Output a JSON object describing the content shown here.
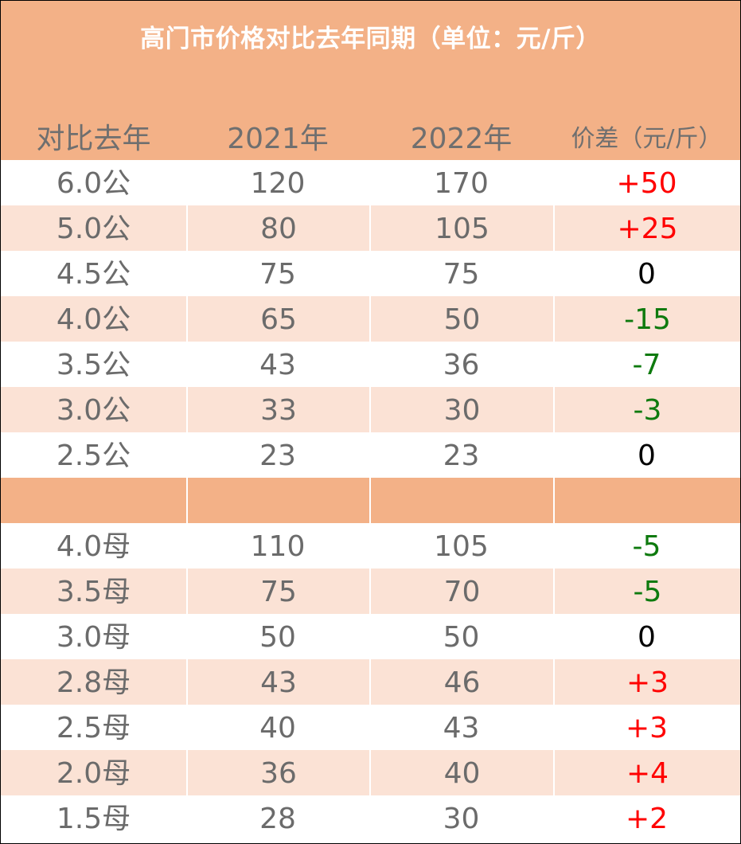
{
  "table": {
    "title": "高门市价格对比去年同期（单位：元/斤）",
    "headers": [
      "对比去年",
      "2021年",
      "2022年",
      "价差（元/斤）"
    ],
    "rows": [
      {
        "label": "6.0公",
        "y2021": "120",
        "y2022": "170",
        "diff": "+50"
      },
      {
        "label": "5.0公",
        "y2021": "80",
        "y2022": "105",
        "diff": "+25"
      },
      {
        "label": "4.5公",
        "y2021": "75",
        "y2022": "75",
        "diff": "0"
      },
      {
        "label": "4.0公",
        "y2021": "65",
        "y2022": "50",
        "diff": "-15"
      },
      {
        "label": "3.5公",
        "y2021": "43",
        "y2022": "36",
        "diff": "-7"
      },
      {
        "label": "3.0公",
        "y2021": "33",
        "y2022": "30",
        "diff": "-3"
      },
      {
        "label": "2.5公",
        "y2021": "23",
        "y2022": "23",
        "diff": "0"
      },
      {
        "label": "",
        "y2021": "",
        "y2022": "",
        "diff": ""
      },
      {
        "label": "4.0母",
        "y2021": "110",
        "y2022": "105",
        "diff": "-5"
      },
      {
        "label": "3.5母",
        "y2021": "75",
        "y2022": "70",
        "diff": "-5"
      },
      {
        "label": "3.0母",
        "y2021": "50",
        "y2022": "50",
        "diff": "0"
      },
      {
        "label": "2.8母",
        "y2021": "43",
        "y2022": "46",
        "diff": "+3"
      },
      {
        "label": "2.5母",
        "y2021": "40",
        "y2022": "43",
        "diff": "+3"
      },
      {
        "label": "2.0母",
        "y2021": "36",
        "y2022": "40",
        "diff": "+4"
      },
      {
        "label": "1.5母",
        "y2021": "28",
        "y2022": "30",
        "diff": "+2"
      }
    ]
  },
  "colors": {
    "header_band": "#f3b187",
    "alt_row": "#fbe2d5",
    "positive": "#ff0000",
    "negative": "#0e7a0e",
    "zero": "#000000",
    "body_text": "#6b6b6b"
  }
}
